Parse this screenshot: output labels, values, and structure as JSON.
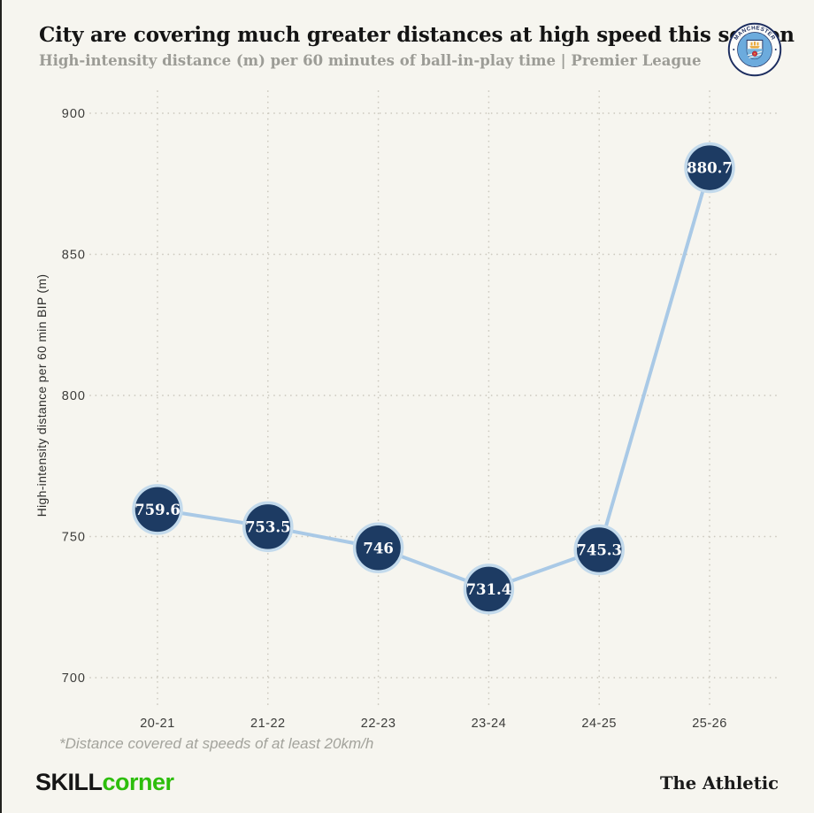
{
  "header": {
    "title": "City are covering much greater distances at high speed this season",
    "subtitle": "High-intensity distance (m) per 60 minutes of ball-in-play time | Premier League",
    "logo": {
      "name": "manchester-city-crest",
      "text_top": "MANCHESTER",
      "text_bottom": "CITY"
    }
  },
  "chart_data": {
    "type": "line",
    "categories": [
      "20-21",
      "21-22",
      "22-23",
      "23-24",
      "24-25",
      "25-26"
    ],
    "values": [
      759.6,
      753.5,
      746,
      731.4,
      745.3,
      880.7
    ],
    "value_labels": [
      "759.6",
      "753.5",
      "746",
      "731.4",
      "745.3",
      "880.7"
    ],
    "title": "City are covering much greater distances at high speed this season",
    "xlabel": "",
    "ylabel": "High-intensity distance per 60 min BIP (m)",
    "yticks": [
      700,
      750,
      800,
      850,
      900
    ],
    "ylim": [
      700,
      900
    ],
    "grid": "dotted",
    "legend": "none",
    "colors": {
      "line": "#a9c9e6",
      "marker_fill": "#1d3b63",
      "marker_stroke": "#c3daec",
      "grid": "#ccc9bf",
      "value_text": "#ffffff"
    }
  },
  "footnote": "*Distance covered at speeds of at least 20km/h",
  "footer": {
    "brand_left_primary": "SKILL",
    "brand_left_accent": "corner",
    "brand_right": "The Athletic"
  },
  "colors": {
    "background": "#f6f5ef",
    "accent_green": "#2dbe0c",
    "navy": "#1d3b63",
    "city_sky_blue": "#6cabdd"
  }
}
